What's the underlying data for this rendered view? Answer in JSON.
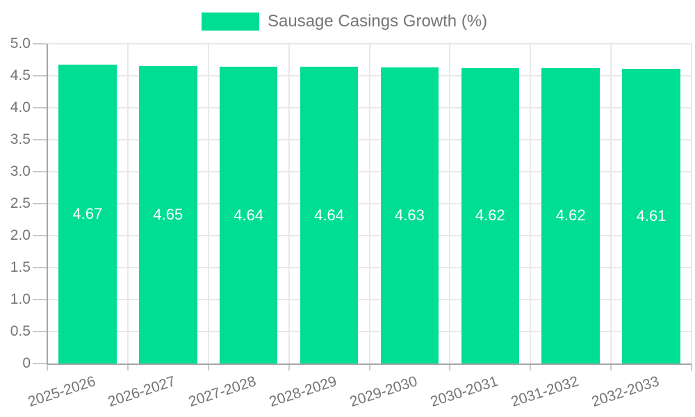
{
  "chart_data": {
    "type": "bar",
    "title": "",
    "xlabel": "",
    "ylabel": "",
    "legend": {
      "label": "Sausage Casings Growth (%)",
      "position": "top"
    },
    "categories": [
      "2025-2026",
      "2026-2027",
      "2027-2028",
      "2028-2029",
      "2029-2030",
      "2030-2031",
      "2031-2032",
      "2032-2033"
    ],
    "series": [
      {
        "name": "Sausage Casings Growth (%)",
        "values": [
          4.67,
          4.65,
          4.64,
          4.64,
          4.63,
          4.62,
          4.62,
          4.61
        ],
        "value_labels": [
          "4.67",
          "4.65",
          "4.64",
          "4.64",
          "4.63",
          "4.62",
          "4.62",
          "4.61"
        ]
      }
    ],
    "ylim": [
      0,
      5
    ],
    "ytick_values": [
      0,
      0.5,
      1,
      1.5,
      2,
      2.5,
      3,
      3.5,
      4,
      4.5,
      5
    ],
    "ytick_labels": [
      "0",
      "0.5",
      "1.0",
      "1.5",
      "2.0",
      "2.5",
      "3.0",
      "3.5",
      "4.0",
      "4.5",
      "5.0"
    ],
    "grid": "both",
    "legend_position": "top",
    "colors": {
      "bar": "#00DE94",
      "value_label": "#ffffff",
      "axis": "#a6a6a6",
      "grid": "#e8e8e8",
      "tick": "#c9c9c9",
      "text": "#757575"
    }
  }
}
